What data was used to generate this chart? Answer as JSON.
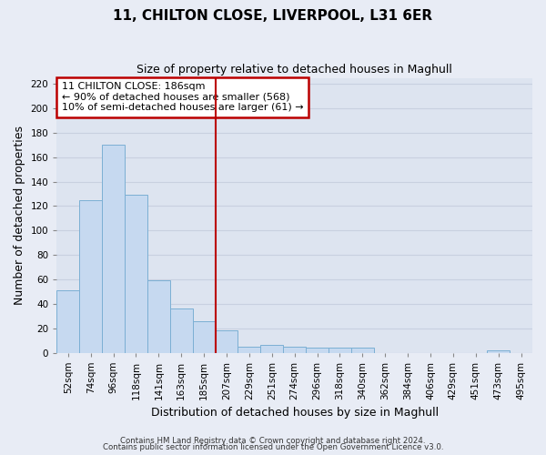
{
  "title": "11, CHILTON CLOSE, LIVERPOOL, L31 6ER",
  "subtitle": "Size of property relative to detached houses in Maghull",
  "xlabel": "Distribution of detached houses by size in Maghull",
  "ylabel": "Number of detached properties",
  "bin_labels": [
    "52sqm",
    "74sqm",
    "96sqm",
    "118sqm",
    "141sqm",
    "163sqm",
    "185sqm",
    "207sqm",
    "229sqm",
    "251sqm",
    "274sqm",
    "296sqm",
    "318sqm",
    "340sqm",
    "362sqm",
    "384sqm",
    "406sqm",
    "429sqm",
    "451sqm",
    "473sqm",
    "495sqm"
  ],
  "bar_values": [
    51,
    125,
    170,
    129,
    59,
    36,
    26,
    18,
    5,
    6,
    5,
    4,
    4,
    4,
    0,
    0,
    0,
    0,
    0,
    2,
    0
  ],
  "bar_color": "#c6d9f0",
  "bar_edge_color": "#7bafd4",
  "property_line_x": 6.5,
  "property_line_color": "#bb0000",
  "annotation_line1": "11 CHILTON CLOSE: 186sqm",
  "annotation_line2": "← 90% of detached houses are smaller (568)",
  "annotation_line3": "10% of semi-detached houses are larger (61) →",
  "annotation_box_color": "#ffffff",
  "annotation_box_edge": "#bb0000",
  "ylim": [
    0,
    225
  ],
  "yticks": [
    0,
    20,
    40,
    60,
    80,
    100,
    120,
    140,
    160,
    180,
    200,
    220
  ],
  "footer1": "Contains HM Land Registry data © Crown copyright and database right 2024.",
  "footer2": "Contains public sector information licensed under the Open Government Licence v3.0.",
  "background_color": "#e8ecf5",
  "plot_bg_color": "#dde4f0",
  "grid_color": "#c8d0e0",
  "title_fontsize": 11,
  "subtitle_fontsize": 9,
  "axis_label_fontsize": 9,
  "tick_fontsize": 7.5
}
